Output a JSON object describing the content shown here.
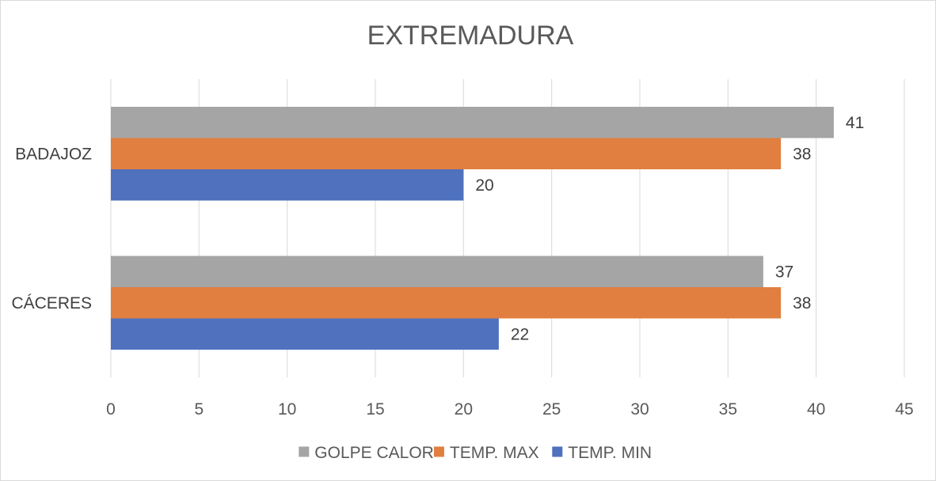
{
  "chart_data": {
    "type": "bar",
    "orientation": "horizontal",
    "title": "EXTREMADURA",
    "categories": [
      "BADAJOZ",
      "CÁCERES"
    ],
    "series": [
      {
        "name": "GOLPE CALOR",
        "color": "#a5a5a5",
        "values": [
          41,
          37
        ]
      },
      {
        "name": "TEMP. MAX",
        "color": "#e07f3f",
        "values": [
          38,
          38
        ]
      },
      {
        "name": "TEMP. MIN",
        "color": "#4f71be",
        "values": [
          20,
          22
        ]
      }
    ],
    "x_ticks": [
      0,
      5,
      10,
      15,
      20,
      25,
      30,
      35,
      40,
      45
    ],
    "xlim": [
      0,
      45
    ],
    "grid": "vertical",
    "legend_position": "bottom"
  }
}
